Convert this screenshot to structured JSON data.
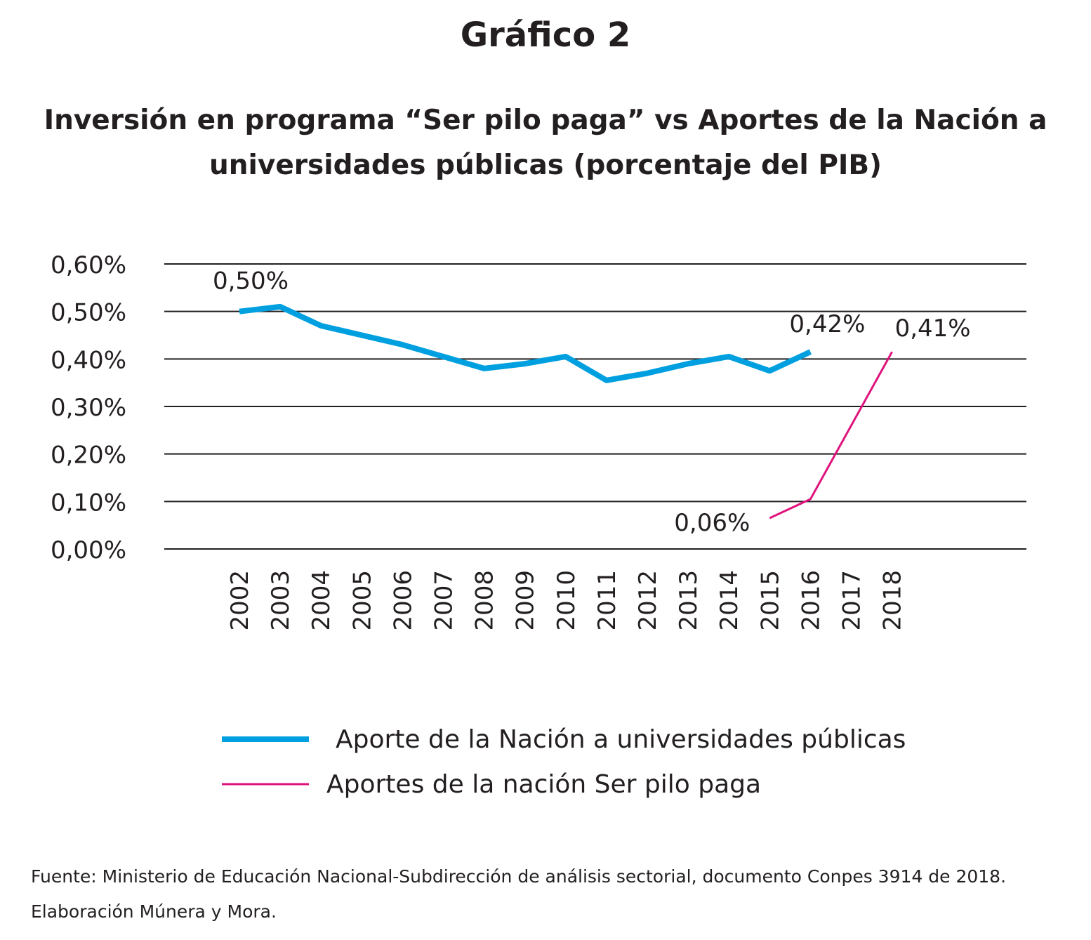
{
  "figure_label": "Gráfico 2",
  "source_line_1": "Fuente: Ministerio de Educación Nacional-Subdirección de análisis sectorial, documento Conpes 3914 de 2018.",
  "source_line_2": "Elaboración Múnera y Mora.",
  "chart_data": {
    "type": "line",
    "title_lines": [
      "Inversión en programa “Ser pilo paga” vs Aportes de la Nación a",
      "universidades públicas (porcentaje del PIB)"
    ],
    "categories": [
      "2002",
      "2003",
      "2004",
      "2005",
      "2006",
      "2007",
      "2008",
      "2009",
      "2010",
      "2011",
      "2012",
      "2013",
      "2014",
      "2015",
      "2016",
      "2017",
      "2018"
    ],
    "y_ticks": [
      "0,00%",
      "0,10%",
      "0,20%",
      "0,30%",
      "0,40%",
      "0,50%",
      "0,60%"
    ],
    "ylim": [
      0,
      0.6
    ],
    "grid": true,
    "legend_position": "bottom",
    "series": [
      {
        "name": "Aporte de la Nación a universidades públicas",
        "color": "#00a0e0",
        "values": [
          0.5,
          0.51,
          0.47,
          0.45,
          0.43,
          0.405,
          0.38,
          0.39,
          0.405,
          0.355,
          0.37,
          0.39,
          0.405,
          0.375,
          0.415,
          null,
          null
        ],
        "labels": [
          {
            "year": "2002",
            "text": "0,50%"
          },
          {
            "year": "2016",
            "text": "0,42%"
          }
        ]
      },
      {
        "name": "Aportes de la nación Ser pilo paga",
        "color": "#e0137c",
        "values": [
          null,
          null,
          null,
          null,
          null,
          null,
          null,
          null,
          null,
          null,
          null,
          null,
          null,
          0.065,
          0.105,
          0.26,
          0.415
        ],
        "labels": [
          {
            "year": "2015",
            "text": "0,06%"
          },
          {
            "year": "2018",
            "text": "0,41%"
          }
        ]
      }
    ]
  }
}
